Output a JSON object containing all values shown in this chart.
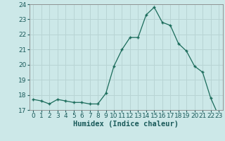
{
  "x": [
    0,
    1,
    2,
    3,
    4,
    5,
    6,
    7,
    8,
    9,
    10,
    11,
    12,
    13,
    14,
    15,
    16,
    17,
    18,
    19,
    20,
    21,
    22,
    23
  ],
  "y": [
    17.7,
    17.6,
    17.4,
    17.7,
    17.6,
    17.5,
    17.5,
    17.4,
    17.4,
    18.1,
    19.9,
    21.0,
    21.8,
    21.8,
    23.3,
    23.8,
    22.8,
    22.6,
    21.4,
    20.9,
    19.9,
    19.5,
    17.8,
    16.6
  ],
  "line_color": "#1a6b5a",
  "marker_color": "#1a6b5a",
  "background_color": "#cce8e8",
  "grid_color": "#b8d4d4",
  "xlabel": "Humidex (Indice chaleur)",
  "ylim": [
    17,
    24
  ],
  "xlim": [
    -0.5,
    23.5
  ],
  "yticks": [
    17,
    18,
    19,
    20,
    21,
    22,
    23,
    24
  ],
  "xticks": [
    0,
    1,
    2,
    3,
    4,
    5,
    6,
    7,
    8,
    9,
    10,
    11,
    12,
    13,
    14,
    15,
    16,
    17,
    18,
    19,
    20,
    21,
    22,
    23
  ],
  "tick_fontsize": 6.5,
  "xlabel_fontsize": 7.5
}
